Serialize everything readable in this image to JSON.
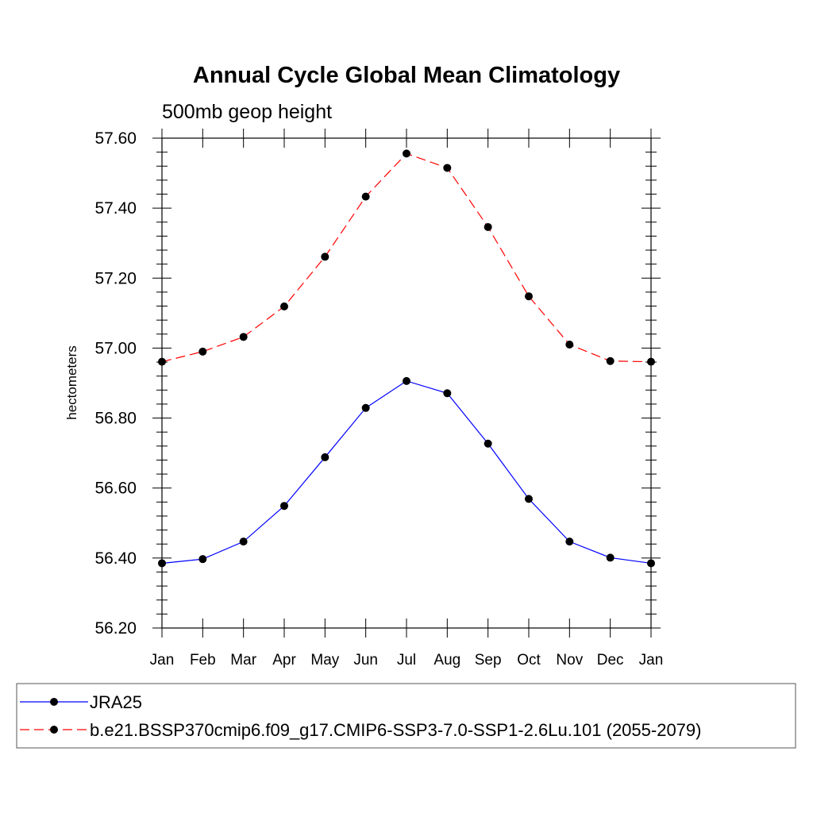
{
  "chart_data": {
    "type": "line",
    "title": "Annual Cycle Global Mean Climatology",
    "subtitle": "500mb geop height",
    "xlabel": "",
    "ylabel": "hectometers",
    "categories": [
      "Jan",
      "Feb",
      "Mar",
      "Apr",
      "May",
      "Jun",
      "Jul",
      "Aug",
      "Sep",
      "Oct",
      "Nov",
      "Dec",
      "Jan"
    ],
    "ylim": [
      56.2,
      57.6
    ],
    "yticks": [
      "56.20",
      "56.40",
      "56.60",
      "56.80",
      "57.00",
      "57.20",
      "57.40",
      "57.60"
    ],
    "grid": false,
    "legend_position": "bottom",
    "series": [
      {
        "name": "JRA25",
        "color": "#0000ff",
        "line_style": "solid",
        "marker": "filled-circle",
        "values": [
          56.385,
          56.397,
          56.447,
          56.549,
          56.688,
          56.829,
          56.906,
          56.871,
          56.727,
          56.569,
          56.447,
          56.401,
          56.385
        ]
      },
      {
        "name": "b.e21.BSSP370cmip6.f09_g17.CMIP6-SSP3-7.0-SSP1-2.6Lu.101 (2055-2079)",
        "color": "#ff0000",
        "line_style": "dashed",
        "marker": "filled-circle",
        "values": [
          56.961,
          56.99,
          57.032,
          57.119,
          57.261,
          57.433,
          57.556,
          57.515,
          57.346,
          57.148,
          57.01,
          56.963,
          56.961
        ]
      }
    ]
  }
}
